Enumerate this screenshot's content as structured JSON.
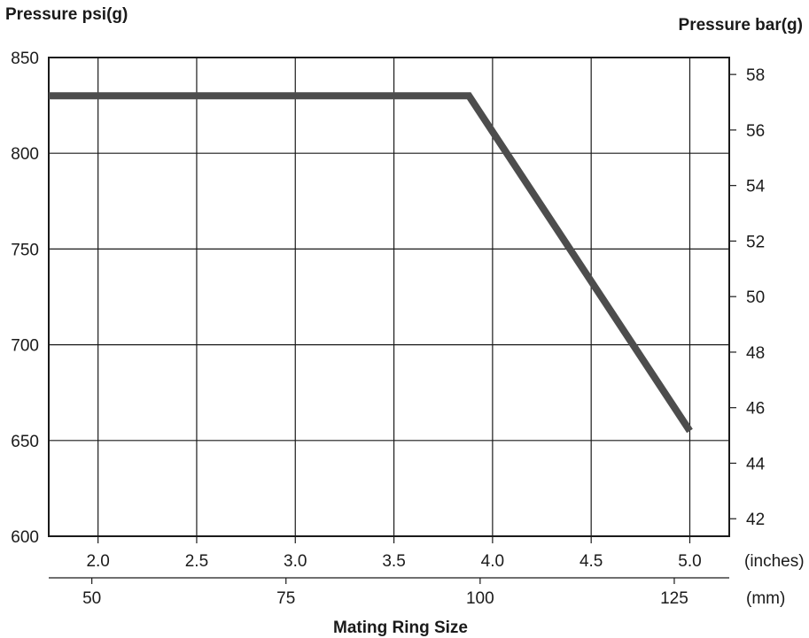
{
  "chart_data": {
    "type": "line",
    "title": "",
    "ylabel_left": "Pressure psi(g)",
    "ylabel_right": "Pressure bar(g)",
    "xlabel": "Mating Ring Size",
    "x_units_inches_label": "(inches)",
    "x_units_mm_label": "(mm)",
    "x_unit": "inches",
    "xlim": [
      1.75,
      5.2
    ],
    "ylim_psi": [
      600,
      850
    ],
    "ylim_bar": [
      41.37,
      58.61
    ],
    "x_ticks_inches": [
      "2.0",
      "2.5",
      "3.0",
      "3.5",
      "4.0",
      "4.5",
      "5.0"
    ],
    "x_ticks_mm": [
      "50",
      "75",
      "100",
      "125"
    ],
    "y_ticks_left": [
      "600",
      "650",
      "700",
      "750",
      "800",
      "850"
    ],
    "y_ticks_right": [
      "42",
      "44",
      "46",
      "48",
      "50",
      "52",
      "54",
      "56",
      "58"
    ],
    "grid": true,
    "series": [
      {
        "x": [
          1.75,
          3.88,
          5.0
        ],
        "y": [
          830,
          830,
          655
        ]
      }
    ],
    "colors": {
      "line": "#4d4d4d",
      "axis": "#1a1a1a",
      "grid": "#1a1a1a"
    }
  }
}
